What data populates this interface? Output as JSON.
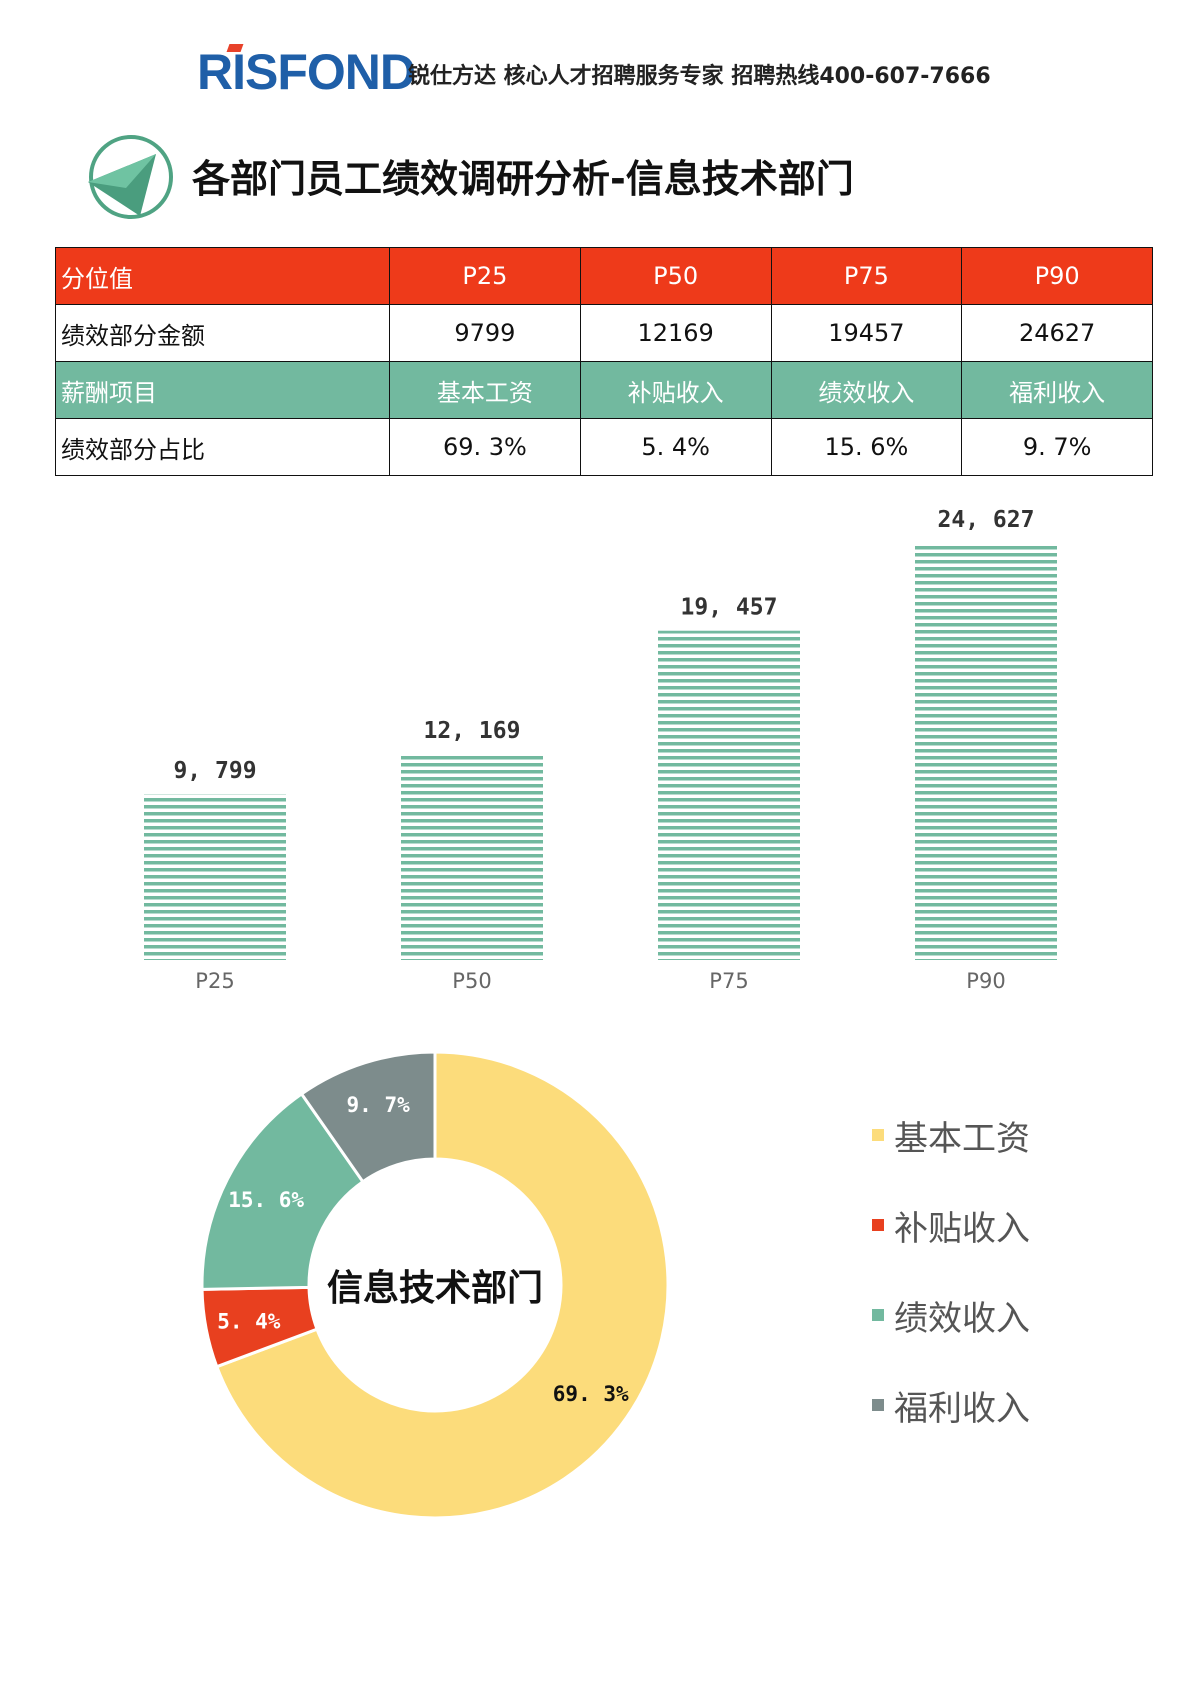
{
  "header": {
    "logo_text": "RISFOND",
    "tagline": "锐仕方达 核心人才招聘服务专家 招聘热线400-607-7666",
    "page_title": "各部门员工绩效调研分析-信息技术部门"
  },
  "table": {
    "rows": [
      {
        "cells": [
          "分位值",
          "P25",
          "P50",
          "P75",
          "P90"
        ]
      },
      {
        "cells": [
          "绩效部分金额",
          "9799",
          "12169",
          "19457",
          "24627"
        ]
      },
      {
        "cells": [
          "薪酬项目",
          "基本工资",
          "补贴收入",
          "绩效收入",
          "福利收入"
        ]
      },
      {
        "cells": [
          "绩效部分占比",
          "69. 3%",
          "5. 4%",
          "15. 6%",
          "9. 7%"
        ]
      }
    ]
  },
  "colors": {
    "red": "#ee3a1a",
    "teal": "#72b99f",
    "yellow": "#fcdc7b",
    "gray": "#7d8c8c",
    "logo_blue": "#1f5fa8"
  },
  "chart_data": [
    {
      "type": "bar",
      "categories": [
        "P25",
        "P50",
        "P75",
        "P90"
      ],
      "values": [
        9799,
        12169,
        19457,
        24627
      ],
      "data_labels": [
        "9, 799",
        "12, 169",
        "19, 457",
        "24, 627"
      ],
      "ylim": [
        0,
        26000
      ],
      "grid": false,
      "bar_style": "horizontal-striped teal"
    },
    {
      "type": "pie",
      "donut": true,
      "center_label": "信息技术部门",
      "categories": [
        "基本工资",
        "补贴收入",
        "绩效收入",
        "福利收入"
      ],
      "values": [
        69.3,
        5.4,
        15.6,
        9.7
      ],
      "data_labels": [
        "69. 3%",
        "5. 4%",
        "15. 6%",
        "9. 7%"
      ],
      "colors": [
        "#fcdc7b",
        "#e8401f",
        "#72b99f",
        "#7d8c8c"
      ],
      "legend_position": "right"
    }
  ]
}
